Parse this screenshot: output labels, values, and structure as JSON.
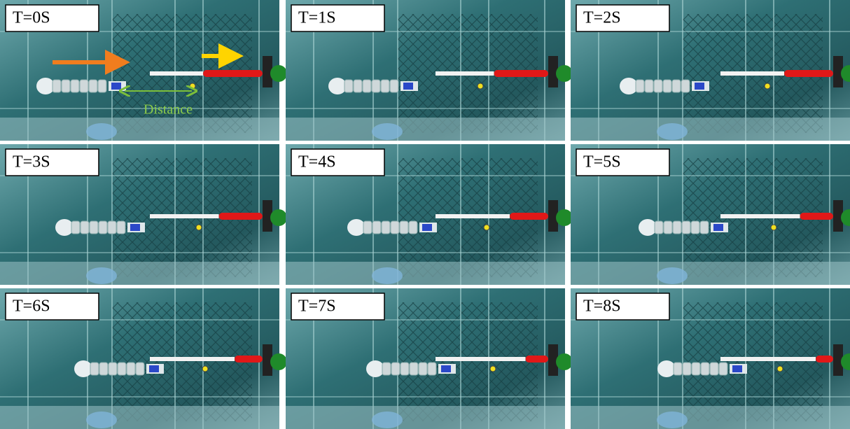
{
  "panels": [
    {
      "label": "T=0S"
    },
    {
      "label": "T=1S"
    },
    {
      "label": "T=2S"
    },
    {
      "label": "T=3S"
    },
    {
      "label": "T=4S"
    },
    {
      "label": "T=5S"
    },
    {
      "label": "T=6S"
    },
    {
      "label": "T=7S"
    },
    {
      "label": "T=8S"
    }
  ],
  "annotation": "Distance"
}
